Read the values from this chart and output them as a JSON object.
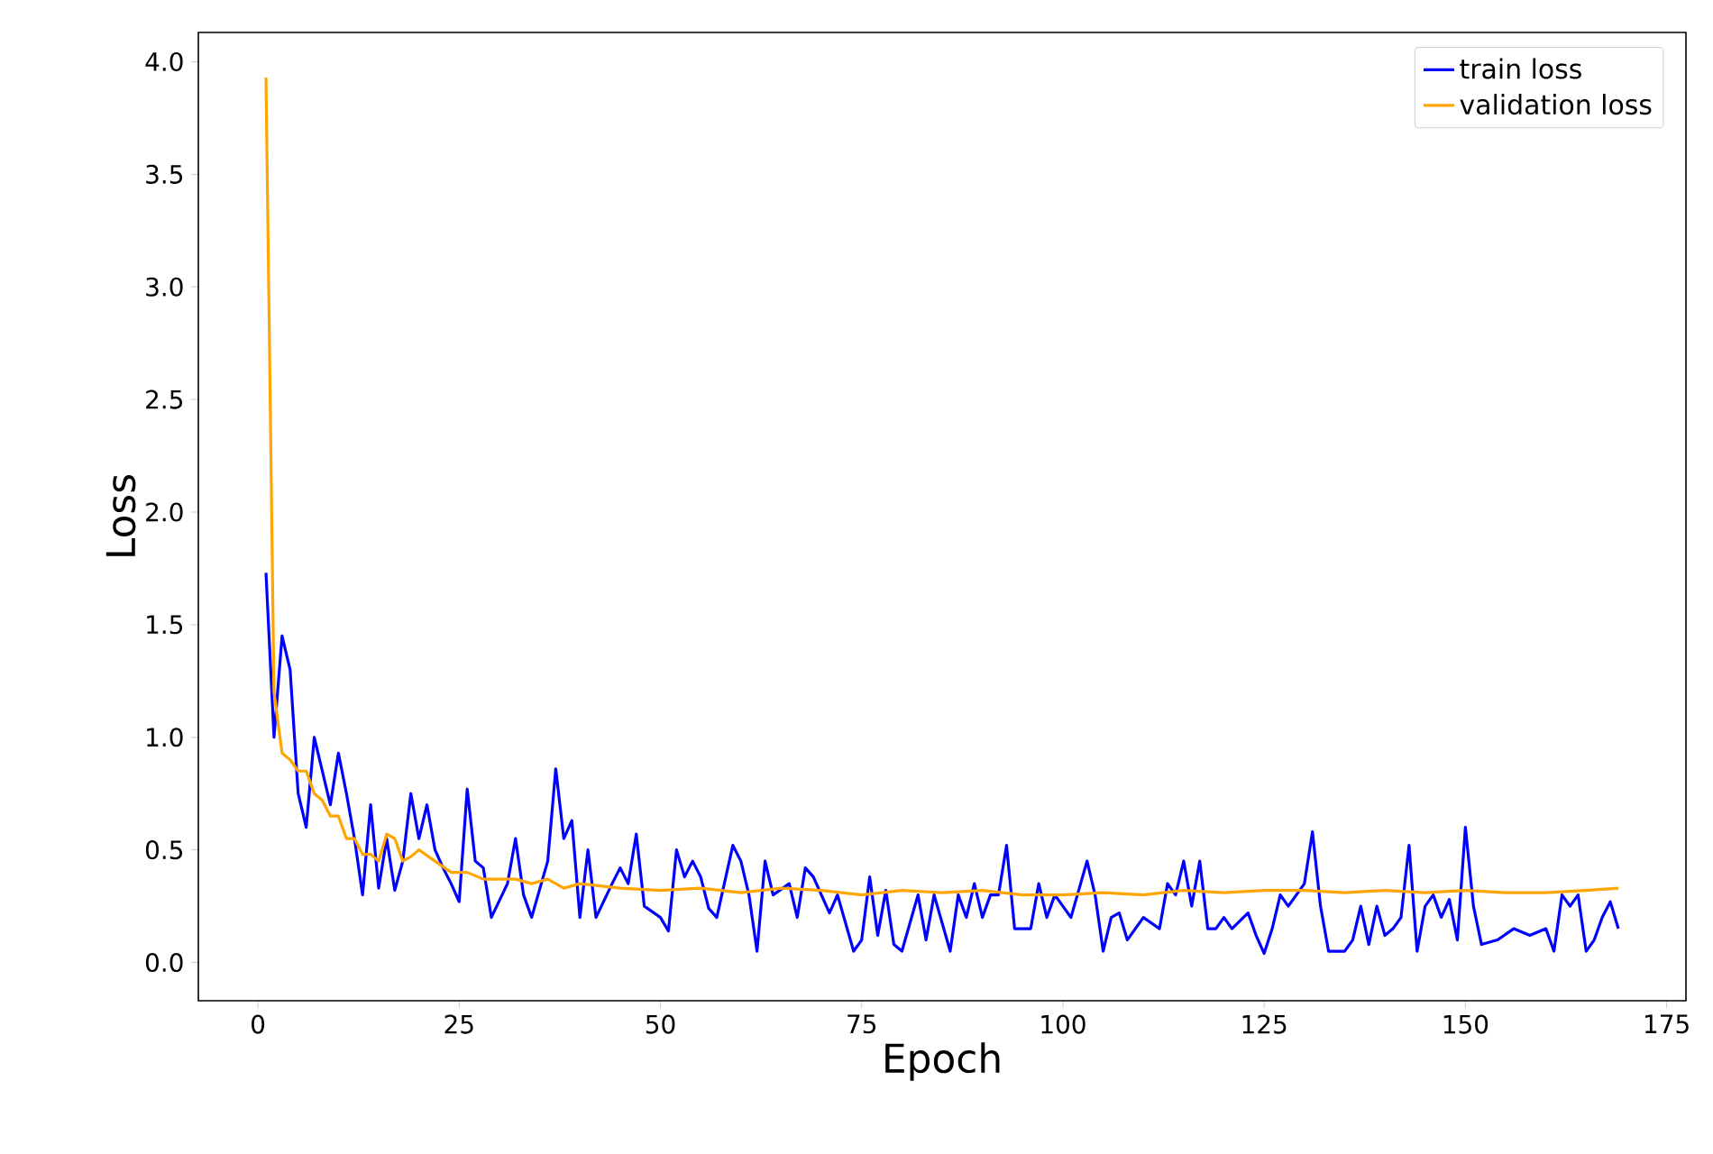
{
  "chart_data": {
    "type": "line",
    "xlabel": "Epoch",
    "ylabel": "Loss",
    "xlim": [
      -7.4,
      177.4
    ],
    "ylim": [
      -0.17,
      4.13
    ],
    "xticks": [
      0,
      25,
      50,
      75,
      100,
      125,
      150,
      175
    ],
    "yticks": [
      {
        "value": 0,
        "label": "0.0"
      },
      {
        "value": 0.5,
        "label": "0.5"
      },
      {
        "value": 1,
        "label": "1.0"
      },
      {
        "value": 1.5,
        "label": "1.5"
      },
      {
        "value": 2,
        "label": "2.0"
      },
      {
        "value": 2.5,
        "label": "2.5"
      },
      {
        "value": 3,
        "label": "3.0"
      },
      {
        "value": 3.5,
        "label": "3.5"
      },
      {
        "value": 4,
        "label": "4.0"
      }
    ],
    "grid": false,
    "legend": "top right",
    "line_style": "solid",
    "series": [
      {
        "name": "train loss",
        "color": "#0000ff",
        "x": [
          1,
          2,
          3,
          4,
          5,
          6,
          7,
          8,
          9,
          10,
          11,
          12,
          13,
          14,
          15,
          16,
          17,
          18,
          19,
          20,
          21,
          22,
          23,
          24,
          25,
          26,
          27,
          28,
          29,
          31,
          32,
          33,
          34,
          36,
          37,
          38,
          39,
          40,
          41,
          42,
          44,
          45,
          46,
          47,
          48,
          50,
          51,
          52,
          53,
          54,
          55,
          56,
          57,
          59,
          60,
          61,
          62,
          63,
          64,
          66,
          67,
          68,
          69,
          71,
          72,
          74,
          75,
          76,
          77,
          78,
          79,
          80,
          82,
          83,
          84,
          86,
          87,
          88,
          89,
          90,
          91,
          92,
          93,
          94,
          96,
          97,
          98,
          99,
          100,
          101,
          103,
          104,
          105,
          106,
          107,
          108,
          109,
          110,
          112,
          113,
          114,
          115,
          116,
          117,
          118,
          119,
          120,
          121,
          123,
          124,
          125,
          126,
          127,
          128,
          129,
          130,
          131,
          132,
          133,
          135,
          136,
          137,
          138,
          139,
          140,
          141,
          142,
          143,
          144,
          145,
          146,
          147,
          148,
          149,
          150,
          151,
          152,
          154,
          156,
          158,
          160,
          161,
          162,
          163,
          164,
          165,
          166,
          167,
          168,
          169
        ],
        "values": [
          1.73,
          1.0,
          1.45,
          1.3,
          0.75,
          0.6,
          1.0,
          0.85,
          0.7,
          0.93,
          0.75,
          0.55,
          0.3,
          0.7,
          0.33,
          0.55,
          0.32,
          0.45,
          0.75,
          0.55,
          0.7,
          0.5,
          0.42,
          0.35,
          0.27,
          0.77,
          0.45,
          0.42,
          0.2,
          0.35,
          0.55,
          0.3,
          0.2,
          0.45,
          0.86,
          0.55,
          0.63,
          0.2,
          0.5,
          0.2,
          0.35,
          0.42,
          0.35,
          0.57,
          0.25,
          0.2,
          0.14,
          0.5,
          0.38,
          0.45,
          0.38,
          0.24,
          0.2,
          0.52,
          0.45,
          0.3,
          0.05,
          0.45,
          0.3,
          0.35,
          0.2,
          0.42,
          0.38,
          0.22,
          0.3,
          0.05,
          0.1,
          0.38,
          0.12,
          0.32,
          0.08,
          0.05,
          0.3,
          0.1,
          0.3,
          0.05,
          0.3,
          0.2,
          0.35,
          0.2,
          0.3,
          0.3,
          0.52,
          0.15,
          0.15,
          0.35,
          0.2,
          0.3,
          0.25,
          0.2,
          0.45,
          0.3,
          0.05,
          0.2,
          0.22,
          0.1,
          0.15,
          0.2,
          0.15,
          0.35,
          0.3,
          0.45,
          0.25,
          0.45,
          0.15,
          0.15,
          0.2,
          0.15,
          0.22,
          0.12,
          0.04,
          0.15,
          0.3,
          0.25,
          0.3,
          0.35,
          0.58,
          0.25,
          0.05,
          0.05,
          0.1,
          0.25,
          0.08,
          0.25,
          0.12,
          0.15,
          0.2,
          0.52,
          0.05,
          0.25,
          0.3,
          0.2,
          0.28,
          0.1,
          0.6,
          0.25,
          0.08,
          0.1,
          0.15,
          0.12,
          0.15,
          0.05,
          0.3,
          0.25,
          0.3,
          0.05,
          0.1,
          0.2,
          0.27,
          0.15
        ]
      },
      {
        "name": "validation loss",
        "color": "#ffa500",
        "x": [
          1,
          2,
          3,
          4,
          5,
          6,
          7,
          8,
          9,
          10,
          11,
          12,
          13,
          14,
          15,
          16,
          17,
          18,
          19,
          20,
          22,
          24,
          26,
          28,
          30,
          32,
          34,
          36,
          38,
          40,
          45,
          50,
          55,
          60,
          65,
          70,
          75,
          80,
          85,
          90,
          95,
          100,
          105,
          110,
          115,
          120,
          125,
          130,
          135,
          140,
          145,
          150,
          155,
          160,
          165,
          169
        ],
        "values": [
          3.93,
          1.2,
          0.93,
          0.9,
          0.85,
          0.85,
          0.75,
          0.72,
          0.65,
          0.65,
          0.55,
          0.55,
          0.48,
          0.48,
          0.45,
          0.57,
          0.55,
          0.45,
          0.47,
          0.5,
          0.45,
          0.4,
          0.4,
          0.37,
          0.37,
          0.37,
          0.35,
          0.37,
          0.33,
          0.35,
          0.33,
          0.32,
          0.33,
          0.31,
          0.33,
          0.32,
          0.3,
          0.32,
          0.31,
          0.32,
          0.3,
          0.3,
          0.31,
          0.3,
          0.32,
          0.31,
          0.32,
          0.32,
          0.31,
          0.32,
          0.31,
          0.32,
          0.31,
          0.31,
          0.32,
          0.33
        ]
      }
    ]
  }
}
